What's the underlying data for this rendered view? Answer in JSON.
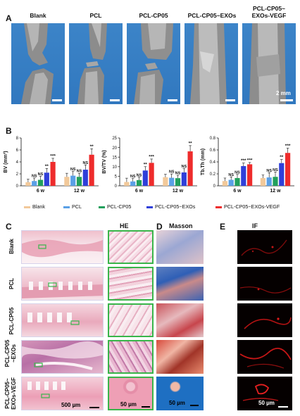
{
  "panels": {
    "a": "A",
    "b": "B",
    "c": "C",
    "d": "D",
    "e": "E"
  },
  "groups": [
    "Blank",
    "PCL",
    "PCL-CP05",
    "PCL-CP05~EXOs",
    "PCL-CP05~\nEXOs-VEGF"
  ],
  "group_titles": {
    "blank": "Blank",
    "pcl": "PCL",
    "pcl_cp05": "PCL-CP05",
    "pcl_cp05_exos": "PCL-CP05~EXOs",
    "pcl_cp05_exos_vegf_l1": "PCL-CP05~",
    "pcl_cp05_exos_vegf_l2": "EXOs-VEGF"
  },
  "ct_scale": "2 mm",
  "colors": {
    "blank": "#f2c99a",
    "pcl": "#5aa0e6",
    "pcl_cp05": "#22a05c",
    "pcl_cp05_exos": "#2f3fd9",
    "pcl_cp05_exos_vegf": "#ee2c2c"
  },
  "legend": {
    "blank": "Blank",
    "pcl": "PCL",
    "pcl_cp05": "PCL-CP05",
    "pcl_cp05_exos": "PCL-CP05~EXOs",
    "pcl_cp05_exos_vegf": "PCL-CP05~EXOs-VEGF"
  },
  "chart_data": [
    {
      "type": "bar",
      "ylabel": "BV (mm³)",
      "categories": [
        "6 w",
        "12 w"
      ],
      "ylim": [
        0,
        8
      ],
      "yticks": [
        0,
        2,
        4,
        6,
        8
      ],
      "series": [
        {
          "name": "Blank",
          "values": [
            0.6,
            1.5
          ],
          "errors": [
            0.5,
            0.6
          ]
        },
        {
          "name": "PCL",
          "values": [
            0.8,
            1.7
          ],
          "errors": [
            0.5,
            0.7
          ]
        },
        {
          "name": "PCL-CP05",
          "values": [
            1.0,
            1.5
          ],
          "errors": [
            0.6,
            0.6
          ]
        },
        {
          "name": "PCL-CP05~EXOs",
          "values": [
            2.2,
            2.7
          ],
          "errors": [
            0.7,
            0.8
          ]
        },
        {
          "name": "PCL-CP05~EXOs-VEGF",
          "values": [
            4.0,
            5.2
          ],
          "errors": [
            0.6,
            1.0
          ]
        }
      ],
      "annotations": [
        [
          "",
          "NS",
          "NS",
          "**",
          "***"
        ],
        [
          "",
          "NS",
          "NS",
          "NS",
          "**"
        ]
      ]
    },
    {
      "type": "bar",
      "ylabel": "BV/TV (%)",
      "categories": [
        "6 w",
        "12 w"
      ],
      "ylim": [
        0,
        25
      ],
      "yticks": [
        0,
        5,
        10,
        15,
        20,
        25
      ],
      "series": [
        {
          "name": "Blank",
          "values": [
            2.0,
            4.5
          ],
          "errors": [
            2.0,
            1.5
          ]
        },
        {
          "name": "PCL",
          "values": [
            2.3,
            4.2
          ],
          "errors": [
            1.5,
            2.0
          ]
        },
        {
          "name": "PCL-CP05",
          "values": [
            3.0,
            4.0
          ],
          "errors": [
            1.5,
            1.5
          ]
        },
        {
          "name": "PCL-CP05~EXOs",
          "values": [
            8.0,
            7.0
          ],
          "errors": [
            2.0,
            2.0
          ]
        },
        {
          "name": "PCL-CP05~EXOs-VEGF",
          "values": [
            12.0,
            18.0
          ],
          "errors": [
            2.0,
            3.0
          ]
        }
      ],
      "annotations": [
        [
          "",
          "NS",
          "NS",
          "**",
          "***"
        ],
        [
          "",
          "NS",
          "NS",
          "NS",
          "**"
        ]
      ]
    },
    {
      "type": "bar",
      "ylabel": "Tb.Th (mm)",
      "categories": [
        "6 w",
        "12 w"
      ],
      "ylim": [
        0,
        0.8
      ],
      "yticks": [
        0.0,
        0.2,
        0.4,
        0.6,
        0.8
      ],
      "series": [
        {
          "name": "Blank",
          "values": [
            0.08,
            0.13
          ],
          "errors": [
            0.05,
            0.05
          ]
        },
        {
          "name": "PCL",
          "values": [
            0.1,
            0.14
          ],
          "errors": [
            0.05,
            0.08
          ]
        },
        {
          "name": "PCL-CP05",
          "values": [
            0.13,
            0.15
          ],
          "errors": [
            0.06,
            0.08
          ]
        },
        {
          "name": "PCL-CP05~EXOs",
          "values": [
            0.33,
            0.38
          ],
          "errors": [
            0.05,
            0.06
          ]
        },
        {
          "name": "PCL-CP05~EXOs-VEGF",
          "values": [
            0.36,
            0.55
          ],
          "errors": [
            0.03,
            0.08
          ]
        }
      ],
      "annotations": [
        [
          "",
          "NS",
          "NS",
          "***",
          "***"
        ],
        [
          "",
          "NS",
          "NS",
          "**",
          "***"
        ]
      ]
    }
  ],
  "columns": {
    "he": "HE",
    "masson": "Masson",
    "if": "IF"
  },
  "row_labels": [
    "Blank",
    "PCL",
    "PCL-CP05",
    "PCL-CP05~\nEXOs",
    "PCL-CP05~\nEXOs-VEGF"
  ],
  "row_label_lines": {
    "r1": "Blank",
    "r2": "PCL",
    "r3": "PCL-CP05",
    "r4_l1": "PCL-CP05",
    "r4_l2": "~EXOs",
    "r5_l1": "PCL-CP05~",
    "r5_l2": "EXOs-VEGF"
  },
  "scale_bars": {
    "he_low": "500 µm",
    "he_high": "50 µm",
    "masson": "50 µm",
    "if": "50 µm"
  }
}
